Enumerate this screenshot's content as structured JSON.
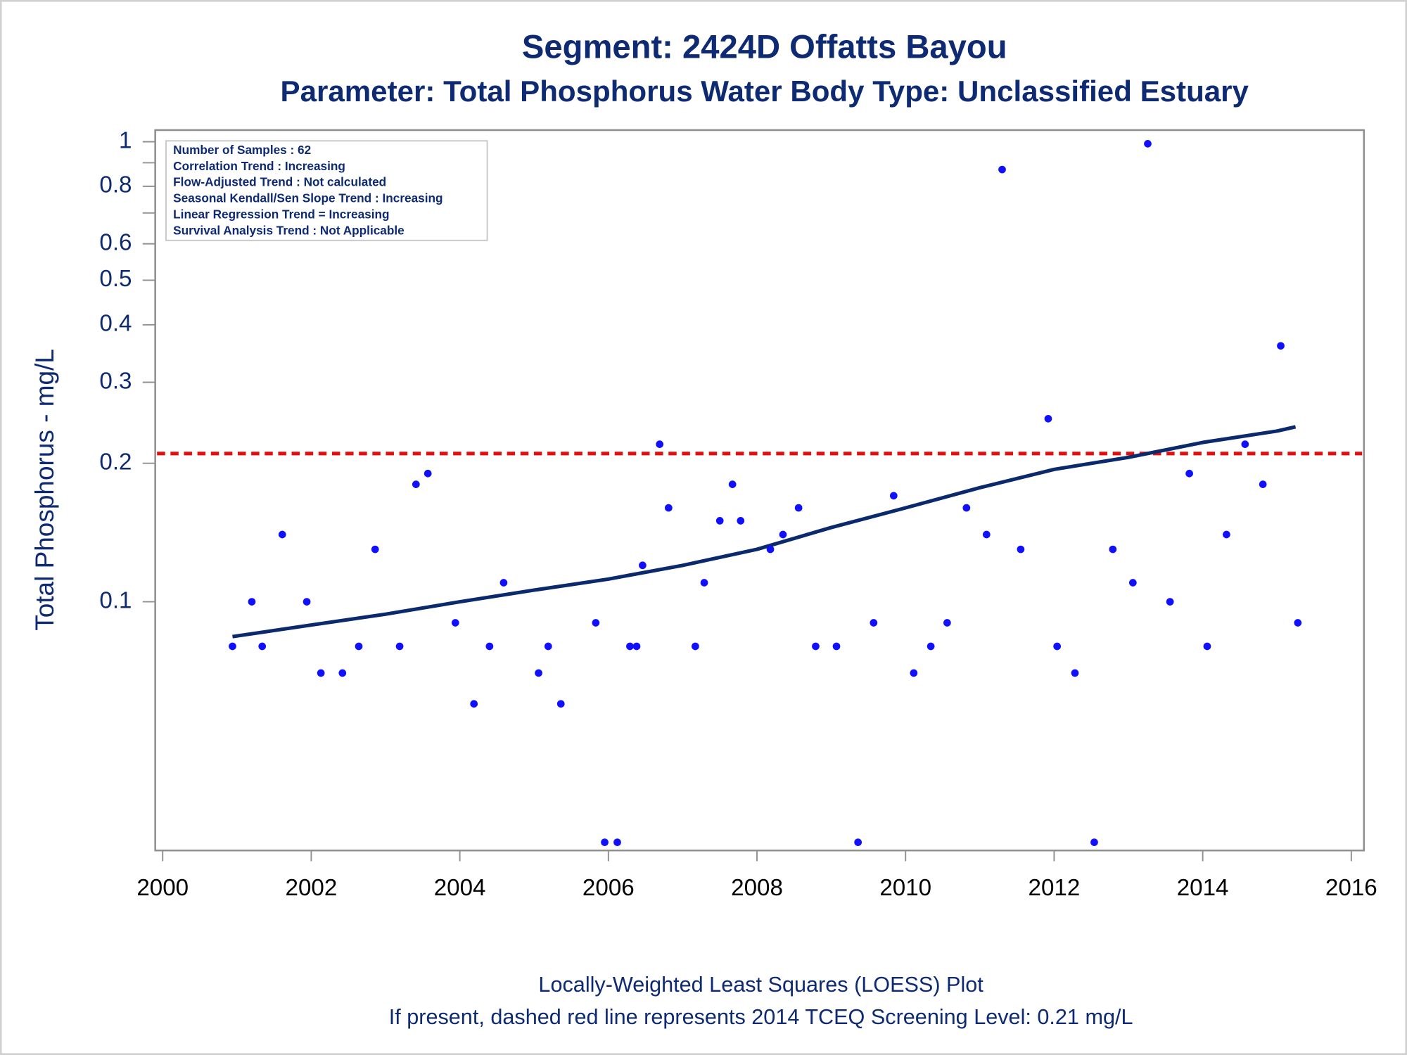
{
  "chart_data": {
    "type": "scatter",
    "title": "Segment: 2424D  Offatts Bayou",
    "subtitle": "Parameter: Total Phosphorus   Water Body Type: Unclassified Estuary",
    "ylabel": "Total Phosphorus - mg/L",
    "info_box": [
      "Number of Samples : 62",
      "Correlation Trend : Increasing",
      "Flow-Adjusted Trend : Not calculated",
      "Seasonal Kendall/Sen Slope Trend : Increasing",
      "Linear Regression Trend = Increasing",
      "Survival Analysis Trend : Not Applicable"
    ],
    "footnotes": [
      "Locally-Weighted Least Squares (LOESS) Plot",
      "If present, dashed red line represents 2014 TCEQ Screening Level: 0.21 mg/L"
    ],
    "color": "#1010ff",
    "x": [
      2000.94,
      2001.2,
      2001.34,
      2001.61,
      2001.94,
      2002.13,
      2002.42,
      2002.64,
      2002.86,
      2003.19,
      2003.41,
      2003.57,
      2003.94,
      2004.19,
      2004.4,
      2004.59,
      2005.06,
      2005.19,
      2005.36,
      2005.83,
      2005.95,
      2006.12,
      2006.29,
      2006.38,
      2006.46,
      2006.69,
      2006.81,
      2007.17,
      2007.29,
      2007.5,
      2007.67,
      2007.78,
      2008.18,
      2008.35,
      2008.56,
      2008.79,
      2009.07,
      2009.36,
      2009.57,
      2009.84,
      2010.11,
      2010.34,
      2010.56,
      2010.82,
      2011.09,
      2011.3,
      2011.55,
      2011.92,
      2012.04,
      2012.28,
      2012.54,
      2012.79,
      2013.06,
      2013.26,
      2013.56,
      2013.82,
      2014.06,
      2014.32,
      2014.57,
      2014.81,
      2015.05,
      2015.28
    ],
    "values": [
      0.08,
      0.1,
      0.08,
      0.14,
      0.1,
      0.07,
      0.07,
      0.08,
      0.13,
      0.08,
      0.18,
      0.19,
      0.09,
      0.06,
      0.08,
      0.11,
      0.07,
      0.08,
      0.06,
      0.09,
      0.03,
      0.03,
      0.08,
      0.08,
      0.12,
      0.22,
      0.16,
      0.08,
      0.11,
      0.15,
      0.18,
      0.15,
      0.13,
      0.14,
      0.16,
      0.08,
      0.08,
      0.03,
      0.09,
      0.17,
      0.07,
      0.08,
      0.09,
      0.16,
      0.14,
      0.87,
      0.13,
      0.25,
      0.08,
      0.07,
      0.03,
      0.13,
      0.11,
      0.99,
      0.1,
      0.19,
      0.08,
      0.14,
      0.22,
      0.18,
      0.36,
      0.09
    ],
    "loess": {
      "color": "#0b2a6e",
      "x": [
        2000.94,
        2002,
        2003,
        2004,
        2005,
        2006,
        2007,
        2008,
        2009,
        2010,
        2011,
        2012,
        2013,
        2014,
        2015,
        2015.25
      ],
      "values": [
        0.084,
        0.089,
        0.094,
        0.1,
        0.106,
        0.112,
        0.12,
        0.13,
        0.145,
        0.16,
        0.177,
        0.194,
        0.206,
        0.222,
        0.235,
        0.24
      ]
    },
    "reference_line": {
      "value": 0.21,
      "color": "#e01010"
    },
    "log_y": true,
    "xlim": [
      1999.9,
      2016.17
    ],
    "xticks": [
      2000,
      2002,
      2004,
      2006,
      2008,
      2010,
      2012,
      2014,
      2016
    ],
    "ylim": [
      0.0288,
      1.06
    ],
    "yticks": [
      1,
      0.8,
      0.6,
      0.5,
      0.4,
      0.3,
      0.2,
      0.1
    ],
    "yminor": [
      0.9,
      0.7
    ]
  }
}
